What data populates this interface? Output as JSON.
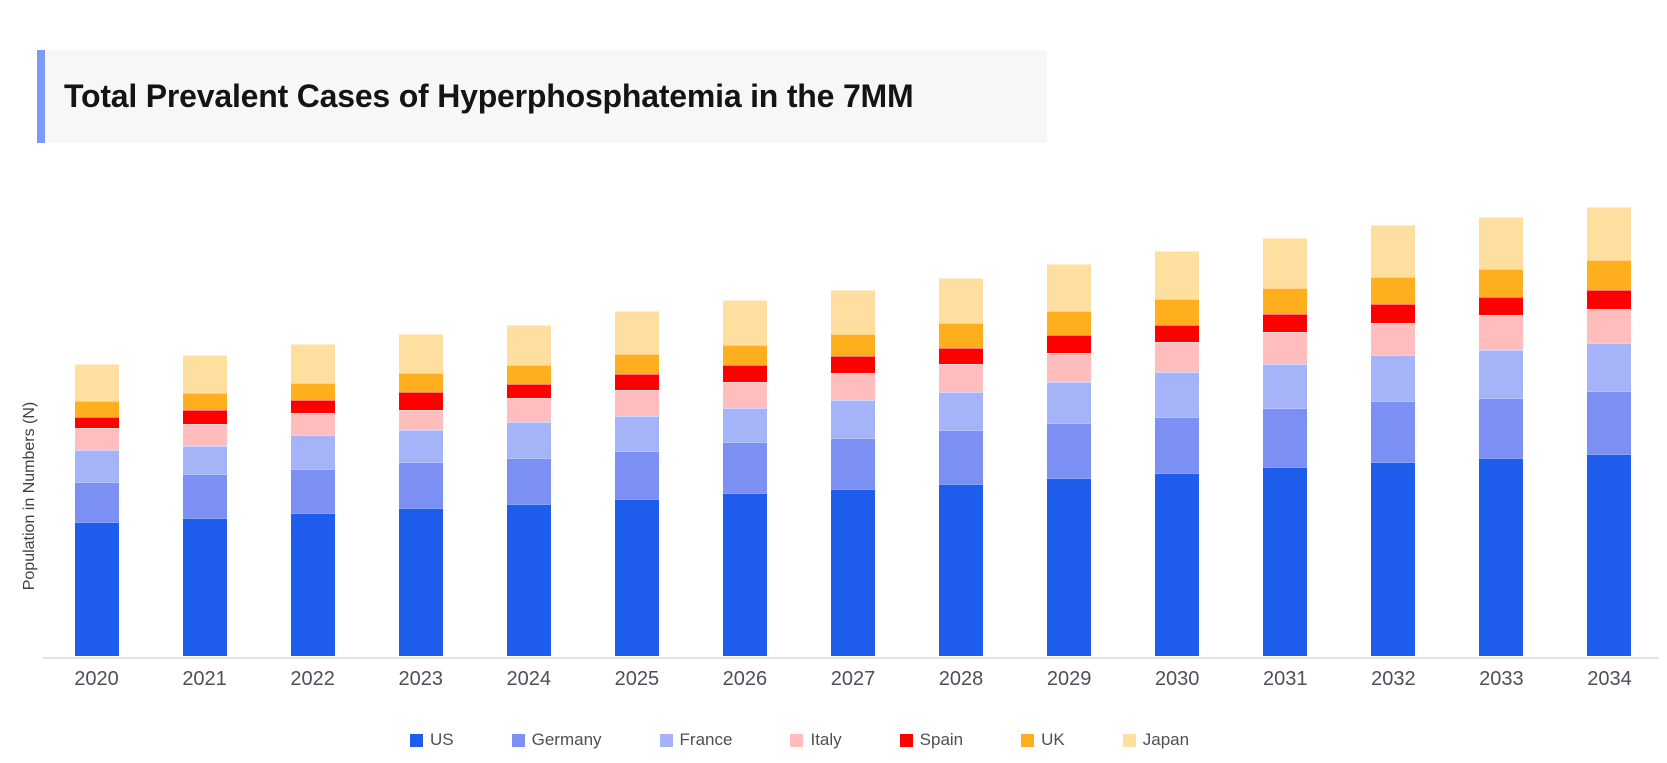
{
  "title": {
    "text": "Total Prevalent Cases of Hyperphosphatemia in the 7MM",
    "accent_color": "#7d9af5",
    "background_color": "#f7f7f8"
  },
  "chart_data": {
    "type": "bar",
    "stacked": true,
    "title": "Total Prevalent Cases of Hyperphosphatemia in the 7MM",
    "xlabel": "",
    "ylabel": "Population in Numbers (N)",
    "y_axis_tick_labels": "none shown",
    "units": "relative units (chart shows no numeric y-axis scale; values estimated from bar pixel heights)",
    "grid": "off",
    "legend_position": "bottom",
    "categories": [
      "2020",
      "2021",
      "2022",
      "2023",
      "2024",
      "2025",
      "2026",
      "2027",
      "2028",
      "2029",
      "2030",
      "2031",
      "2032",
      "2033",
      "2034"
    ],
    "series": [
      {
        "name": "US",
        "color": "#1e5ceb",
        "values": [
          134,
          138,
          143,
          148,
          152,
          157,
          163,
          167,
          172,
          178,
          183,
          189,
          194,
          198,
          202
        ]
      },
      {
        "name": "Germany",
        "color": "#7b90f2",
        "values": [
          40,
          44,
          44,
          46,
          46,
          48,
          51,
          51,
          54,
          55,
          56,
          59,
          61,
          60,
          63
        ]
      },
      {
        "name": "France",
        "color": "#a5b4f8",
        "values": [
          32,
          28,
          34,
          32,
          36,
          35,
          34,
          38,
          38,
          41,
          45,
          44,
          46,
          48,
          48
        ]
      },
      {
        "name": "Italy",
        "color": "#ffbdbe",
        "values": [
          22,
          22,
          22,
          20,
          24,
          26,
          26,
          27,
          28,
          29,
          30,
          32,
          32,
          35,
          34
        ]
      },
      {
        "name": "Spain",
        "color": "#fe0000",
        "values": [
          11,
          14,
          13,
          18,
          14,
          16,
          17,
          17,
          16,
          18,
          17,
          18,
          19,
          18,
          19
        ]
      },
      {
        "name": "UK",
        "color": "#ffaf1e",
        "values": [
          16,
          17,
          17,
          19,
          19,
          20,
          20,
          22,
          25,
          24,
          26,
          26,
          27,
          28,
          30
        ]
      },
      {
        "name": "Japan",
        "color": "#ffdfa0",
        "values": [
          37,
          38,
          39,
          39,
          40,
          43,
          45,
          44,
          45,
          47,
          48,
          50,
          52,
          52,
          53
        ]
      }
    ]
  }
}
